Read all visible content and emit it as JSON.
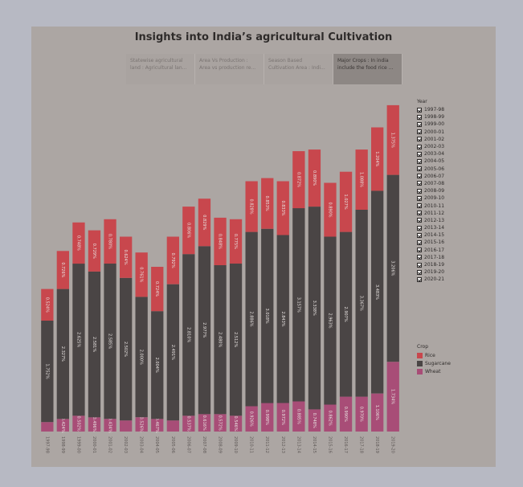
{
  "dashboard": {
    "title": "Insights into India’s agricultural Cultivation",
    "tabs": [
      {
        "line1": "Statewise agricultural",
        "line2": "land : Agricultural lan...",
        "active": false
      },
      {
        "line1": "Area Vs Production :",
        "line2": "Area vs production re...",
        "active": false
      },
      {
        "line1": "Season Based",
        "line2": "Cultivation Area : Indi...",
        "active": false
      },
      {
        "line1": "Major Crops : In india",
        "line2": "include the food rice ...",
        "active": true
      }
    ]
  },
  "legend_year": {
    "title": "Year",
    "items": [
      "1997-98",
      "1998-99",
      "1999-00",
      "2000-01",
      "2001-02",
      "2002-03",
      "2003-04",
      "2004-05",
      "2005-06",
      "2006-07",
      "2007-08",
      "2008-09",
      "2009-10",
      "2010-11",
      "2011-12",
      "2012-13",
      "2013-14",
      "2014-15",
      "2015-16",
      "2016-17",
      "2017-18",
      "2018-19",
      "2019-20",
      "2020-21"
    ]
  },
  "legend_crop": {
    "title": "Crop",
    "items": [
      {
        "name": "Rice",
        "color": "#c8474d"
      },
      {
        "name": "Sugarcane",
        "color": "#4a4545"
      },
      {
        "name": "Wheat",
        "color": "#a84d77"
      }
    ]
  },
  "chart_data": {
    "type": "bar",
    "stacked": true,
    "categories": [
      "1997-98",
      "1998-99",
      "1999-00",
      "2000-01",
      "2001-02",
      "2002-03",
      "2003-04",
      "2004-05",
      "2005-06",
      "2006-07",
      "2007-08",
      "2008-09",
      "2009-10",
      "2010-11",
      "2011-12",
      "2012-13",
      "2013-14",
      "2014-15",
      "2015-16",
      "2016-17",
      "2017-18",
      "2018-19",
      "2019-20"
    ],
    "series": [
      {
        "name": "Wheat",
        "color": "#a84d77",
        "values": [
          0.3,
          0.4,
          0.5,
          0.45,
          0.4,
          0.35,
          0.45,
          0.4,
          0.35,
          0.5,
          0.55,
          0.55,
          0.5,
          0.8,
          0.9,
          0.9,
          0.95,
          0.7,
          0.85,
          1.1,
          1.1,
          1.2,
          2.2
        ],
        "labels": [
          "0.366%",
          "0.424%",
          "0.502%",
          "0.496%",
          "0.434%",
          "0.374%",
          "0.526%",
          "0.467%",
          "0.370%",
          "0.537%",
          "0.616%",
          "0.572%",
          "0.546%",
          "0.926%",
          "0.998%",
          "0.972%",
          "0.885%",
          "0.748%",
          "0.862%",
          "0.990%",
          "0.970%",
          "1.106%",
          "1.734%"
        ]
      },
      {
        "name": "Sugarcane",
        "color": "#4a4545",
        "values": [
          3.2,
          4.1,
          4.8,
          4.6,
          4.9,
          4.5,
          3.8,
          3.4,
          4.3,
          5.1,
          5.3,
          4.7,
          4.8,
          5.5,
          5.5,
          5.3,
          6.1,
          6.4,
          5.3,
          5.2,
          5.9,
          6.4,
          5.9
        ],
        "labels": [
          "1.752%",
          "2.327%",
          "2.625%",
          "2.581%",
          "2.585%",
          "2.502%",
          "2.000%",
          "2.004%",
          "2.491%",
          "2.810%",
          "2.977%",
          "2.480%",
          "2.512%",
          "2.886%",
          "3.018%",
          "2.843%",
          "3.157%",
          "3.338%",
          "2.963%",
          "2.907%",
          "3.367%",
          "3.483%",
          "3.206%"
        ]
      },
      {
        "name": "Rice",
        "color": "#c8474d",
        "values": [
          1.0,
          1.2,
          1.3,
          1.3,
          1.4,
          1.3,
          1.4,
          1.4,
          1.5,
          1.5,
          1.5,
          1.5,
          1.4,
          1.6,
          1.6,
          1.7,
          1.8,
          1.8,
          1.7,
          1.9,
          1.9,
          2.0,
          2.2
        ],
        "labels": [
          "0.524%",
          "0.726%",
          "0.748%",
          "0.729%",
          "0.780%",
          "0.624%",
          "0.761%",
          "0.724%",
          "0.792%",
          "0.806%",
          "0.829%",
          "0.848%",
          "0.775%",
          "0.828%",
          "0.853%",
          "0.833%",
          "0.872%",
          "0.890%",
          "0.890%",
          "1.027%",
          "1.088%",
          "1.204%",
          "1.375%"
        ]
      }
    ],
    "ylim": [
      0,
      10.5
    ]
  }
}
